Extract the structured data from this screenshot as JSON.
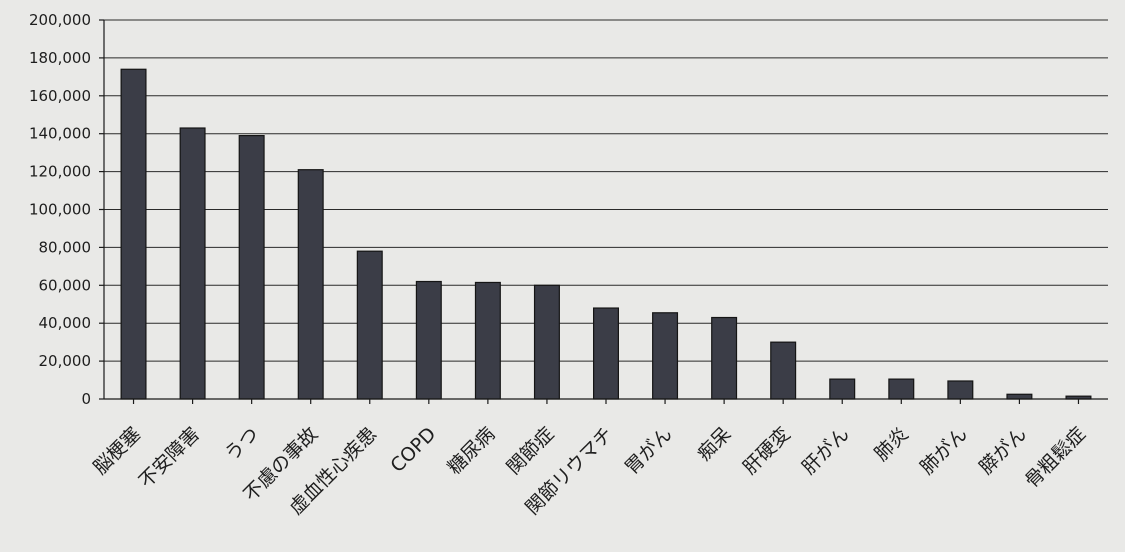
{
  "chart_data": {
    "type": "bar",
    "title": "",
    "xlabel": "",
    "ylabel": "",
    "ylim": [
      0,
      200000
    ],
    "yticks": [
      0,
      20000,
      40000,
      60000,
      80000,
      100000,
      120000,
      140000,
      160000,
      180000,
      200000
    ],
    "ytick_labels": [
      "0",
      "20,000",
      "40,000",
      "60,000",
      "80,000",
      "100,000",
      "120,000",
      "140,000",
      "160,000",
      "180,000",
      "200,000"
    ],
    "grid": true,
    "legend": "none",
    "categories": [
      "脳梗塞",
      "不安障害",
      "うつ",
      "不慮の事故",
      "虚血性心疾患",
      "COPD",
      "糖尿病",
      "関節症",
      "関節リウマチ",
      "胃がん",
      "痴呆",
      "肝硬変",
      "肝がん",
      "肺炎",
      "肺がん",
      "膵がん",
      "骨粗鬆症"
    ],
    "values": [
      174000,
      143000,
      139000,
      121000,
      78000,
      62000,
      61500,
      60000,
      48000,
      45500,
      43000,
      30000,
      10500,
      10500,
      9500,
      2500,
      1500
    ],
    "colors": {
      "bar": "#3b3d47",
      "background": "#e9e9e7",
      "grid": "#2a2a2a"
    }
  }
}
